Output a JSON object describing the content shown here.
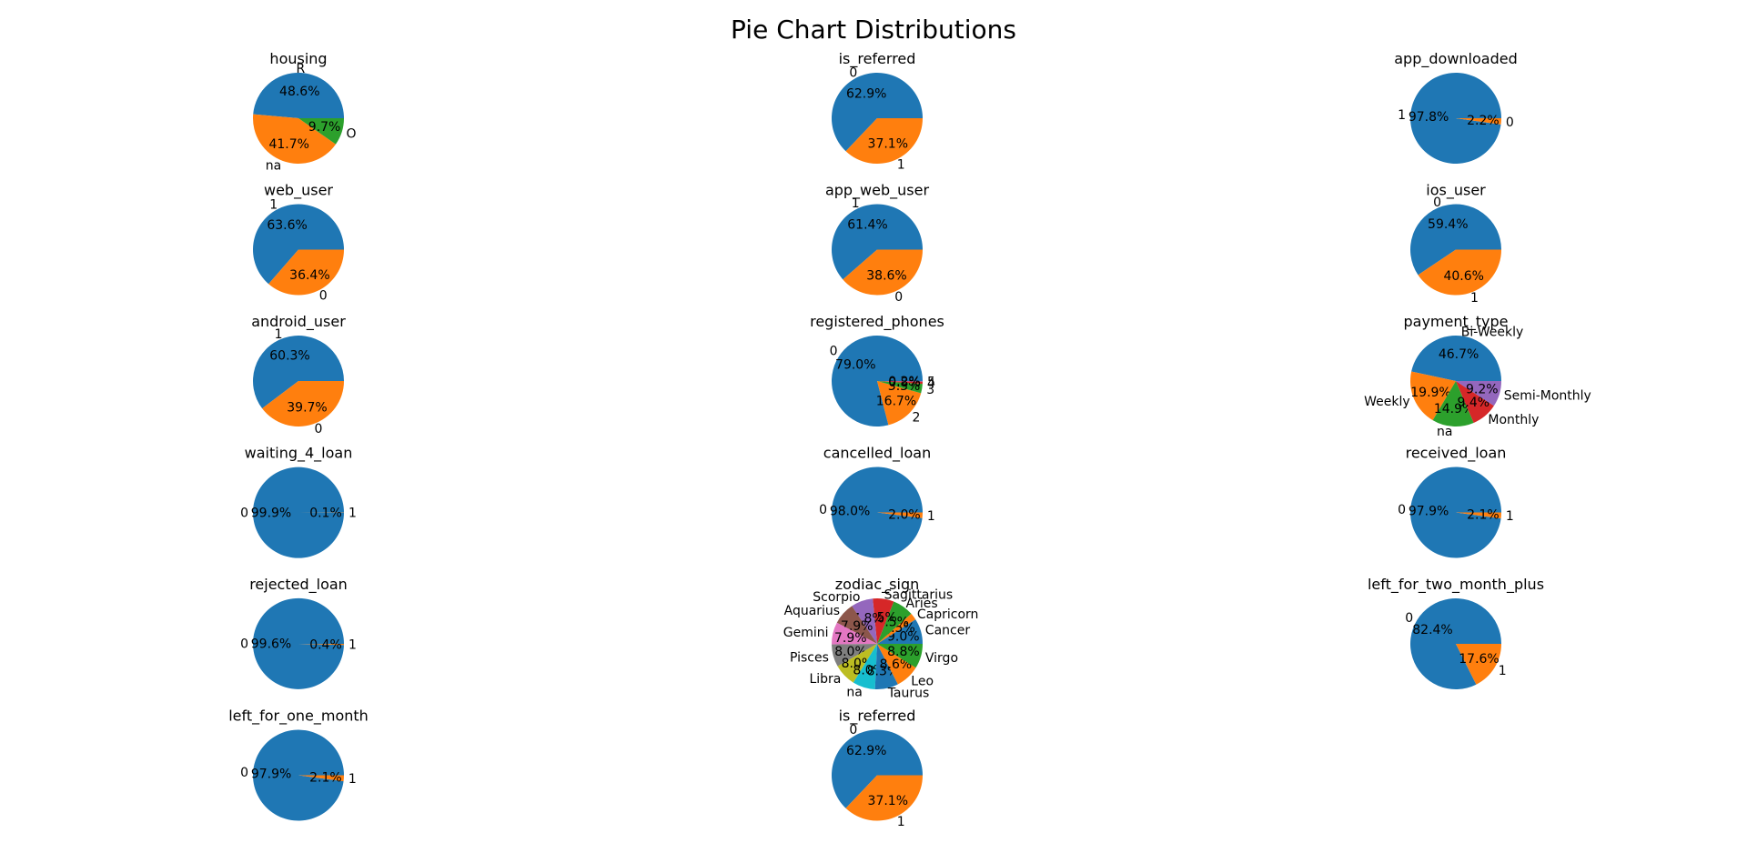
{
  "title": "Pie Chart Distributions",
  "colors": [
    "#1f77b4",
    "#ff7f0e",
    "#2ca02c",
    "#d62728",
    "#9467bd",
    "#8c564b",
    "#e377c2",
    "#7f7f7f",
    "#bcbd22",
    "#17becf"
  ],
  "chart_data": [
    {
      "type": "pie",
      "title": "housing",
      "labels": [
        "R",
        "na",
        "O"
      ],
      "values": [
        48.6,
        41.7,
        9.7
      ]
    },
    {
      "type": "pie",
      "title": "is_referred",
      "labels": [
        "0",
        "1"
      ],
      "values": [
        62.9,
        37.1
      ]
    },
    {
      "type": "pie",
      "title": "app_downloaded",
      "labels": [
        "1",
        "0"
      ],
      "values": [
        97.8,
        2.2
      ]
    },
    {
      "type": "pie",
      "title": "web_user",
      "labels": [
        "1",
        "0"
      ],
      "values": [
        63.6,
        36.4
      ]
    },
    {
      "type": "pie",
      "title": "app_web_user",
      "labels": [
        "1",
        "0"
      ],
      "values": [
        61.4,
        38.6
      ]
    },
    {
      "type": "pie",
      "title": "ios_user",
      "labels": [
        "0",
        "1"
      ],
      "values": [
        59.4,
        40.6
      ]
    },
    {
      "type": "pie",
      "title": "android_user",
      "labels": [
        "1",
        "0"
      ],
      "values": [
        60.3,
        39.7
      ]
    },
    {
      "type": "pie",
      "title": "registered_phones",
      "labels": [
        "0",
        "2",
        "3",
        "4",
        "5"
      ],
      "values": [
        79.0,
        16.7,
        3.3,
        0.8,
        0.2
      ]
    },
    {
      "type": "pie",
      "title": "payment_type",
      "labels": [
        "Bi-Weekly",
        "Weekly",
        "na",
        "Monthly",
        "Semi-Monthly"
      ],
      "values": [
        46.7,
        19.9,
        14.9,
        9.4,
        9.2
      ]
    },
    {
      "type": "pie",
      "title": "waiting_4_loan",
      "labels": [
        "0",
        "1"
      ],
      "values": [
        99.9,
        0.1
      ]
    },
    {
      "type": "pie",
      "title": "cancelled_loan",
      "labels": [
        "0",
        "1"
      ],
      "values": [
        98.0,
        2.0
      ]
    },
    {
      "type": "pie",
      "title": "received_loan",
      "labels": [
        "0",
        "1"
      ],
      "values": [
        97.9,
        2.1
      ]
    },
    {
      "type": "pie",
      "title": "rejected_loan",
      "labels": [
        "0",
        "1"
      ],
      "values": [
        99.6,
        0.4
      ]
    },
    {
      "type": "pie",
      "title": "zodiac_sign",
      "labels": [
        "Cancer",
        "Capricorn",
        "Aries",
        "Sagittarius",
        "Scorpio",
        "Aquarius",
        "Gemini",
        "Pisces",
        "Libra",
        "na",
        "Taurus",
        "Leo",
        "Virgo"
      ],
      "values": [
        9.0,
        2.5,
        7.5,
        7.5,
        7.8,
        7.9,
        7.9,
        8.0,
        8.0,
        8.0,
        8.3,
        8.6,
        8.8
      ]
    },
    {
      "type": "pie",
      "title": "left_for_two_month_plus",
      "labels": [
        "0",
        "1"
      ],
      "values": [
        82.4,
        17.6
      ]
    },
    {
      "type": "pie",
      "title": "left_for_one_month",
      "labels": [
        "0",
        "1"
      ],
      "values": [
        97.9,
        2.1
      ]
    },
    {
      "type": "pie",
      "title": "is_referred",
      "labels": [
        "0",
        "1"
      ],
      "values": [
        62.9,
        37.1
      ]
    }
  ]
}
